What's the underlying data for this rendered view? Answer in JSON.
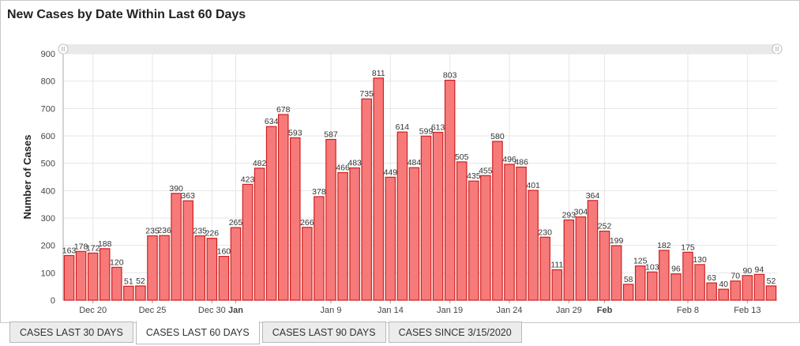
{
  "title": "New Cases by Date Within Last 60 Days",
  "tabs": [
    {
      "label": "CASES LAST 30 DAYS",
      "active": false
    },
    {
      "label": "CASES LAST 60 DAYS",
      "active": true
    },
    {
      "label": "CASES LAST 90 DAYS",
      "active": false
    },
    {
      "label": "CASES SINCE 3/15/2020",
      "active": false
    }
  ],
  "colors": {
    "bar_fill": "#f77a7a",
    "bar_stroke": "#d01f1f",
    "grid": "#e6e6e6",
    "axis_text": "#444444"
  },
  "chart_data": {
    "type": "bar",
    "title": "New Cases by Date Within Last 60 Days",
    "ylabel": "Number of Cases",
    "xlabel": "",
    "ylim": [
      0,
      900
    ],
    "yticks": [
      0,
      100,
      200,
      300,
      400,
      500,
      600,
      700,
      800,
      900
    ],
    "grid": true,
    "legend": "none",
    "categories": [
      "Dec 18",
      "Dec 19",
      "Dec 20",
      "Dec 21",
      "Dec 22",
      "Dec 23",
      "Dec 24",
      "Dec 25",
      "Dec 26",
      "Dec 27",
      "Dec 28",
      "Dec 29",
      "Dec 30",
      "Dec 31",
      "Jan 1",
      "Jan 2",
      "Jan 3",
      "Jan 4",
      "Jan 5",
      "Jan 6",
      "Jan 7",
      "Jan 8",
      "Jan 9",
      "Jan 10",
      "Jan 11",
      "Jan 12",
      "Jan 13",
      "Jan 14",
      "Jan 15",
      "Jan 16",
      "Jan 17",
      "Jan 18",
      "Jan 19",
      "Jan 20",
      "Jan 21",
      "Jan 22",
      "Jan 23",
      "Jan 24",
      "Jan 25",
      "Jan 26",
      "Jan 27",
      "Jan 28",
      "Jan 29",
      "Jan 30",
      "Jan 31",
      "Feb 1",
      "Feb 2",
      "Feb 3",
      "Feb 4",
      "Feb 5",
      "Feb 6",
      "Feb 7",
      "Feb 8",
      "Feb 9",
      "Feb 10",
      "Feb 11",
      "Feb 12",
      "Feb 13",
      "Feb 14",
      "Feb 15"
    ],
    "values": [
      163,
      178,
      172,
      188,
      120,
      51,
      52,
      235,
      236,
      390,
      363,
      235,
      226,
      160,
      265,
      423,
      482,
      634,
      678,
      593,
      266,
      378,
      587,
      466,
      483,
      735,
      811,
      449,
      614,
      484,
      599,
      613,
      803,
      505,
      435,
      455,
      580,
      496,
      486,
      401,
      230,
      111,
      293,
      304,
      364,
      252,
      199,
      58,
      125,
      103,
      182,
      96,
      175,
      130,
      63,
      40,
      70,
      90,
      94,
      52
    ],
    "x_tick_labels": [
      {
        "label": "Dec 20",
        "category": "Dec 20",
        "bold": false
      },
      {
        "label": "Dec 25",
        "category": "Dec 25",
        "bold": false
      },
      {
        "label": "Dec 30",
        "category": "Dec 30",
        "bold": false
      },
      {
        "label": "Jan",
        "category": "Jan 1",
        "bold": true
      },
      {
        "label": "Jan 9",
        "category": "Jan 9",
        "bold": false
      },
      {
        "label": "Jan 14",
        "category": "Jan 14",
        "bold": false
      },
      {
        "label": "Jan 19",
        "category": "Jan 19",
        "bold": false
      },
      {
        "label": "Jan 24",
        "category": "Jan 24",
        "bold": false
      },
      {
        "label": "Jan 29",
        "category": "Jan 29",
        "bold": false
      },
      {
        "label": "Feb",
        "category": "Feb 1",
        "bold": true
      },
      {
        "label": "Feb 8",
        "category": "Feb 8",
        "bold": false
      },
      {
        "label": "Feb 13",
        "category": "Feb 13",
        "bold": false
      }
    ]
  }
}
